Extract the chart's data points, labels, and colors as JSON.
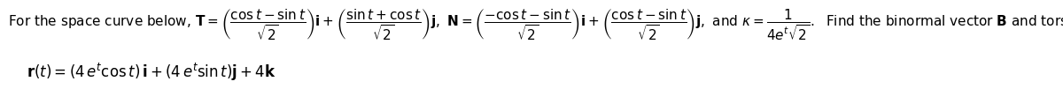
{
  "line1": "For the space curve below, $\\mathbf{T} = \\left(\\dfrac{\\cos t - \\sin t}{\\sqrt{2}}\\right)\\mathbf{i} + \\left(\\dfrac{\\sin t + \\cos t}{\\sqrt{2}}\\right)\\mathbf{j},\\ \\mathbf{N} = \\left(\\dfrac{-\\cos t - \\sin t}{\\sqrt{2}}\\right)\\mathbf{i} + \\left(\\dfrac{\\cos t - \\sin t}{\\sqrt{2}}\\right)\\mathbf{j},\\ \\text{and}\\ \\kappa = \\dfrac{1}{4e^t\\sqrt{2}}.\\ \\ \\text{Find the binormal vector }\\mathbf{B}\\text{ and torsion }\\tau\\text{ for this space curve.}$",
  "line2": "$\\mathbf{r}(t) = (4\\,e^t\\cos t)\\,\\mathbf{i} + (4\\,e^t\\sin t)\\,\\mathbf{j} + 4\\mathbf{k}$",
  "bg_color": "#ffffff",
  "text_color": "#000000",
  "fontsize1": 11,
  "fontsize2": 12,
  "fig_width": 12.0,
  "fig_height": 1.01,
  "dpi": 100
}
